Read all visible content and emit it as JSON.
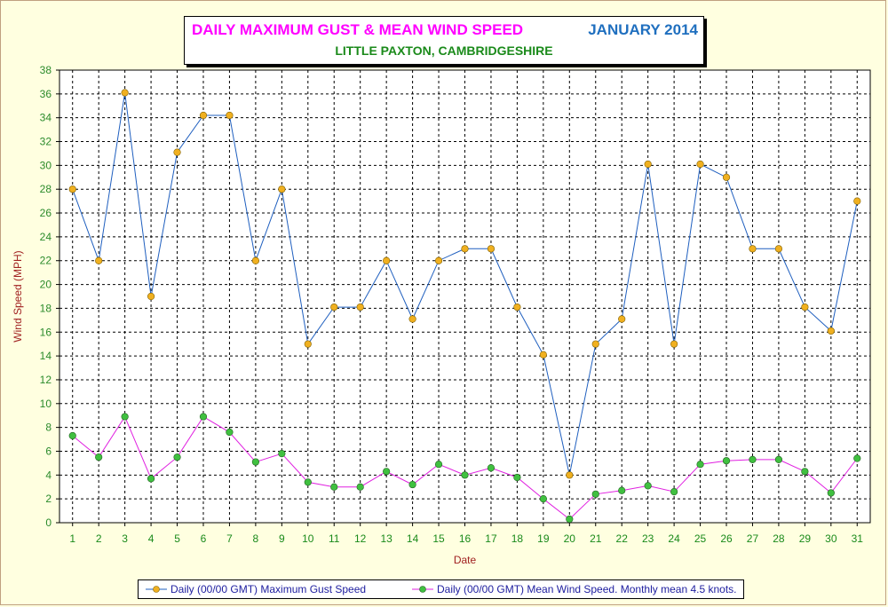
{
  "title": {
    "main": "DAILY MAXIMUM GUST & MEAN WIND SPEED",
    "period": "JANUARY 2014",
    "location": "LITTLE PAXTON, CAMBRIDGESHIRE"
  },
  "colors": {
    "background": "#ffffe0",
    "grid": "#000000",
    "gust_line": "#1f5fbf",
    "mean_line": "#e020e0",
    "gust_marker": "#f0b020",
    "mean_marker": "#40c040",
    "tick_x": "#1a8a1a",
    "tick_y": "#2a8a2a",
    "axis_label": "#a02020"
  },
  "chart_data": {
    "type": "line",
    "xlabel": "Date",
    "ylabel": "Wind Speed (MPH)",
    "ylim": [
      0,
      38
    ],
    "y_ticks": [
      0,
      2,
      4,
      6,
      8,
      10,
      12,
      14,
      16,
      18,
      20,
      22,
      24,
      26,
      28,
      30,
      32,
      34,
      36,
      38
    ],
    "x": [
      1,
      2,
      3,
      4,
      5,
      6,
      7,
      8,
      9,
      10,
      11,
      12,
      13,
      14,
      15,
      16,
      17,
      18,
      19,
      20,
      21,
      22,
      23,
      24,
      25,
      26,
      27,
      28,
      29,
      30,
      31
    ],
    "grid": true,
    "legend_position": "bottom",
    "series": [
      {
        "name": "Daily (00/00 GMT) Maximum Gust Speed",
        "values": [
          28,
          22,
          36.1,
          19,
          31.1,
          34.2,
          34.2,
          22,
          28,
          15,
          18.1,
          18.1,
          22,
          17.1,
          22,
          23,
          23,
          18.1,
          14.1,
          4,
          15,
          17.1,
          30.1,
          15,
          30.1,
          29,
          23,
          23,
          18.1,
          16.1,
          27
        ]
      },
      {
        "name": "Daily (00/00 GMT) Mean Wind Speed. Monthly mean 4.5 knots.",
        "values": [
          7.3,
          5.5,
          8.9,
          3.7,
          5.5,
          8.9,
          7.6,
          5.1,
          5.8,
          3.4,
          3,
          3,
          4.3,
          3.2,
          4.9,
          4,
          4.6,
          3.8,
          2,
          0.3,
          2.4,
          2.7,
          3.1,
          2.6,
          4.9,
          5.2,
          5.3,
          5.3,
          4.3,
          2.5,
          5.4
        ]
      }
    ]
  }
}
